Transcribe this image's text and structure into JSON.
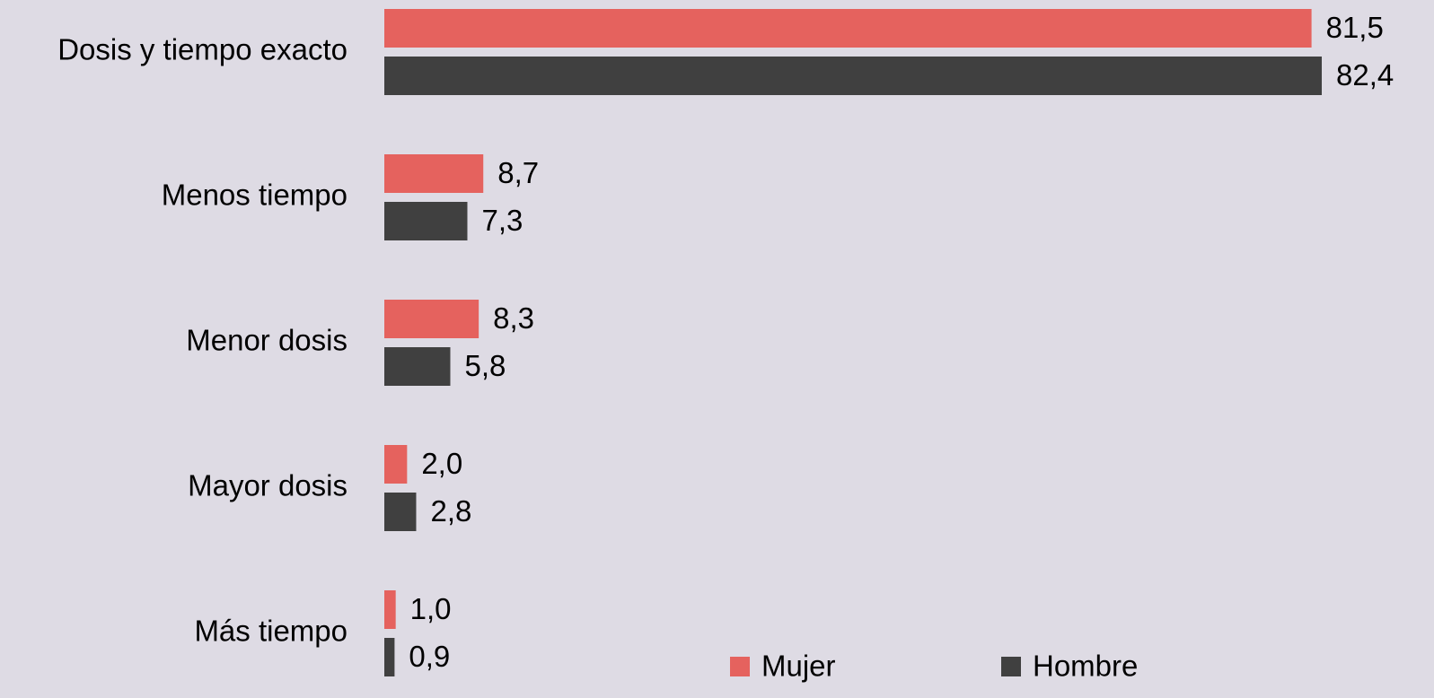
{
  "chart_data": {
    "type": "bar",
    "orientation": "horizontal",
    "categories": [
      "Dosis y tiempo exacto",
      "Menos tiempo",
      "Menor dosis",
      "Mayor dosis",
      "Más tiempo"
    ],
    "series": [
      {
        "name": "Mujer",
        "color": "#e5625e",
        "values": [
          81.5,
          8.7,
          8.3,
          2.0,
          1.0
        ],
        "value_labels": [
          "81,5",
          "8,7",
          "8,3",
          "2,0",
          "1,0"
        ]
      },
      {
        "name": "Hombre",
        "color": "#404040",
        "values": [
          82.4,
          7.3,
          5.8,
          2.8,
          0.9
        ],
        "value_labels": [
          "82,4",
          "7,3",
          "5,8",
          "2,8",
          "0,9"
        ]
      }
    ],
    "legend": "bottom"
  }
}
